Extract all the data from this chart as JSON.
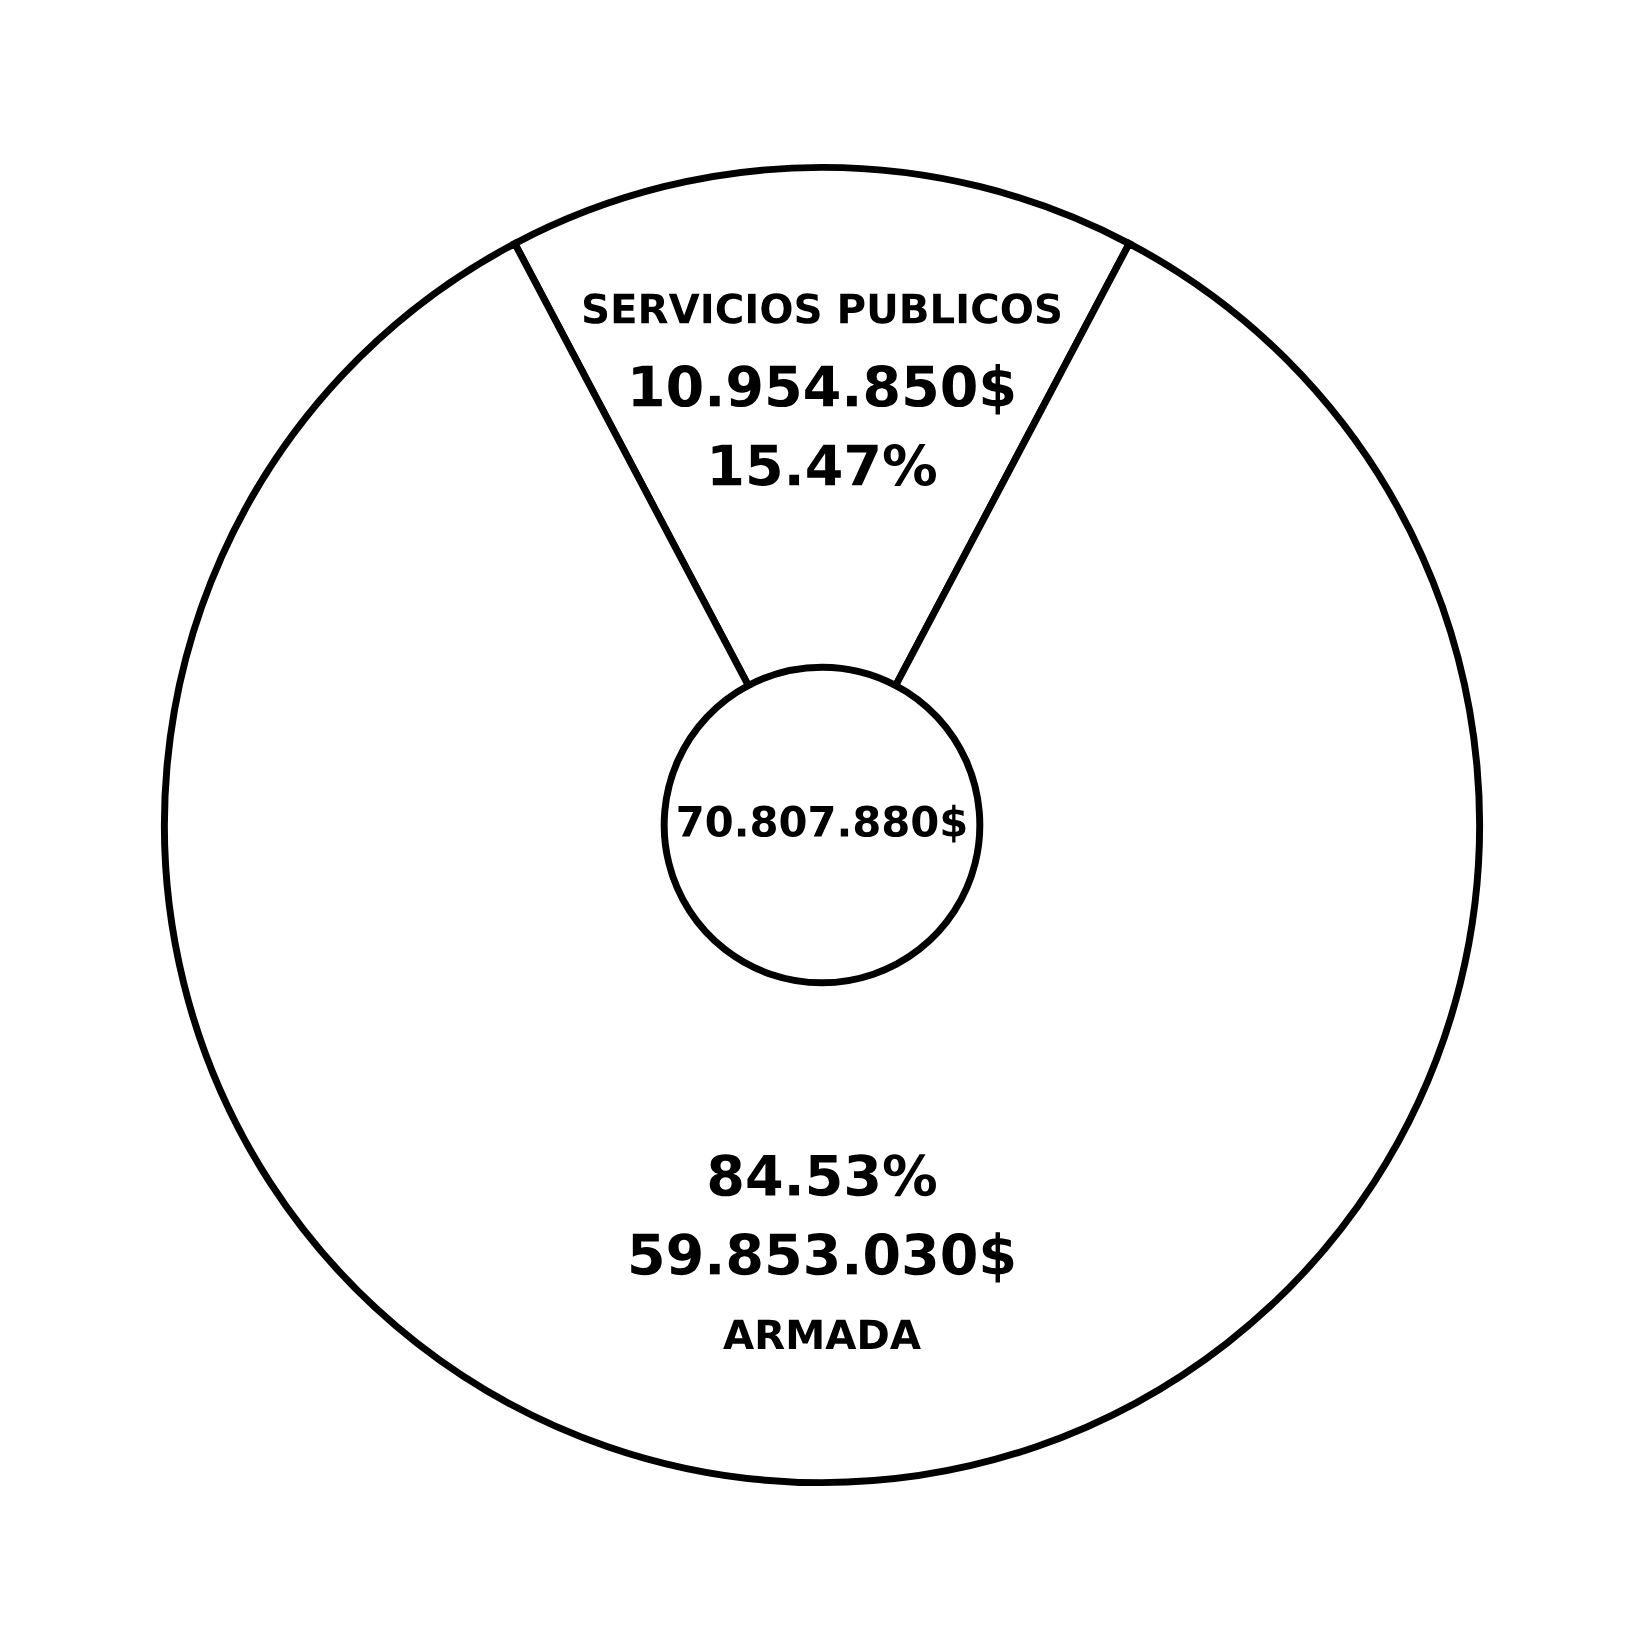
{
  "chart_data": {
    "type": "donut",
    "categories": [
      "SERVICIOS PUBLICOS",
      "ARMADA"
    ],
    "values": [
      10954850,
      59853030
    ],
    "colors": [
      "#ffffff",
      "#ffffff"
    ],
    "value_labels": [
      "10.954.850$",
      "59.853.030$"
    ],
    "annotations": [
      "70.807.880$",
      "15.47%",
      "84.53%"
    ]
  }
}
